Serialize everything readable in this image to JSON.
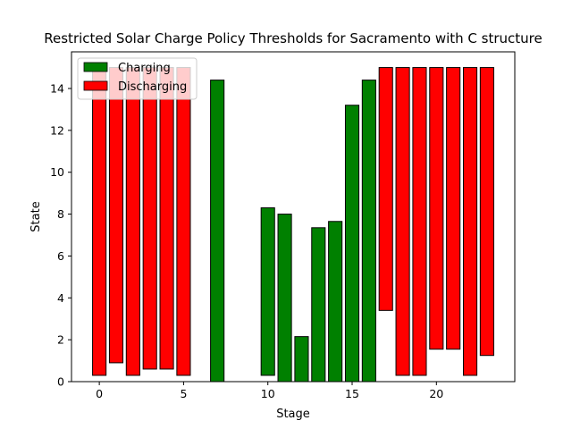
{
  "chart_data": {
    "type": "bar",
    "title": "Restricted Solar Charge Policy Thresholds for Sacramento with C structure",
    "xlabel": "Stage",
    "ylabel": "State",
    "xlim": [
      -1.65,
      24.65
    ],
    "ylim": [
      0,
      15.75
    ],
    "xticks": [
      0,
      5,
      10,
      15,
      20
    ],
    "yticks": [
      0,
      2,
      4,
      6,
      8,
      10,
      12,
      14
    ],
    "grid": false,
    "legend_position": "top-left",
    "series": [
      {
        "name": "Charging",
        "color": "#008000",
        "bars": [
          {
            "x": 7,
            "bottom": 0,
            "top": 14.4
          },
          {
            "x": 8,
            "bottom": 0,
            "top": 0
          },
          {
            "x": 9,
            "bottom": 0,
            "top": 0
          },
          {
            "x": 10,
            "bottom": 0.3,
            "top": 8.3
          },
          {
            "x": 11,
            "bottom": 0,
            "top": 8.0
          },
          {
            "x": 12,
            "bottom": 0,
            "top": 2.15
          },
          {
            "x": 13,
            "bottom": 0,
            "top": 7.35
          },
          {
            "x": 14,
            "bottom": 0,
            "top": 7.65
          },
          {
            "x": 15,
            "bottom": 0,
            "top": 13.2
          },
          {
            "x": 16,
            "bottom": 0,
            "top": 14.4
          },
          {
            "x": 17,
            "bottom": 0,
            "top": 0
          },
          {
            "x": 18,
            "bottom": 0,
            "top": 0
          },
          {
            "x": 19,
            "bottom": 0,
            "top": 0
          },
          {
            "x": 20,
            "bottom": 0,
            "top": 0
          },
          {
            "x": 21,
            "bottom": 0,
            "top": 0
          },
          {
            "x": 22,
            "bottom": 0,
            "top": 0
          },
          {
            "x": 23,
            "bottom": 0,
            "top": 0
          }
        ]
      },
      {
        "name": "Discharging",
        "color": "#ff0000",
        "bars": [
          {
            "x": 0,
            "bottom": 0.3,
            "top": 15.0
          },
          {
            "x": 1,
            "bottom": 0.9,
            "top": 15.0
          },
          {
            "x": 2,
            "bottom": 0.3,
            "top": 15.0
          },
          {
            "x": 3,
            "bottom": 0.6,
            "top": 15.0
          },
          {
            "x": 4,
            "bottom": 0.6,
            "top": 15.0
          },
          {
            "x": 5,
            "bottom": 0.3,
            "top": 15.0
          },
          {
            "x": 17,
            "bottom": 3.4,
            "top": 15.0
          },
          {
            "x": 18,
            "bottom": 0.3,
            "top": 15.0
          },
          {
            "x": 19,
            "bottom": 0.3,
            "top": 15.0
          },
          {
            "x": 20,
            "bottom": 1.55,
            "top": 15.0
          },
          {
            "x": 21,
            "bottom": 1.55,
            "top": 15.0
          },
          {
            "x": 22,
            "bottom": 0.3,
            "top": 15.0
          },
          {
            "x": 23,
            "bottom": 1.25,
            "top": 15.0
          }
        ]
      }
    ]
  }
}
